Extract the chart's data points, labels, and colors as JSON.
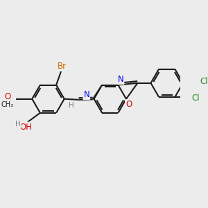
{
  "bg_color": "#ececec",
  "bond_color": "#1a1a1a",
  "atom_colors": {
    "Br": "#cc6600",
    "O": "#dd0000",
    "N": "#0000ee",
    "Cl": "#228b22",
    "C": "#1a1a1a",
    "H": "#808080"
  },
  "figsize": [
    3.0,
    3.0
  ],
  "dpi": 100
}
